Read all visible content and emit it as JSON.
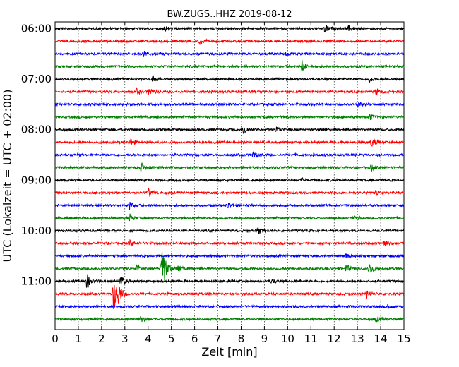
{
  "chart_data": {
    "type": "line",
    "title": "BW.ZUGS..HHZ 2019-08-12",
    "xlabel": "Zeit  [min]",
    "ylabel": "UTC (Lokalzeit = UTC + 02:00)",
    "xlim": [
      0,
      15
    ],
    "x_ticks": [
      "0",
      "1",
      "2",
      "3",
      "4",
      "5",
      "6",
      "7",
      "8",
      "9",
      "10",
      "11",
      "12",
      "13",
      "14",
      "15"
    ],
    "y_ticks": [
      {
        "label": "06:00",
        "trace": 0
      },
      {
        "label": "07:00",
        "trace": 4
      },
      {
        "label": "08:00",
        "trace": 8
      },
      {
        "label": "09:00",
        "trace": 12
      },
      {
        "label": "10:00",
        "trace": 16
      },
      {
        "label": "11:00",
        "trace": 20
      }
    ],
    "grid": "vertical dotted",
    "trace_minutes": 15,
    "colors": [
      "#000000",
      "#ff0000",
      "#0000ff",
      "#008000"
    ],
    "traces": [
      {
        "start": "06:00",
        "color": "#000000",
        "events": [
          {
            "t": 4.7,
            "a": 3
          },
          {
            "t": 11.6,
            "a": 7
          },
          {
            "t": 12.6,
            "a": 4
          }
        ]
      },
      {
        "start": "06:15",
        "color": "#ff0000",
        "events": [
          {
            "t": 6.2,
            "a": 5
          }
        ]
      },
      {
        "start": "06:30",
        "color": "#0000ff",
        "events": [
          {
            "t": 3.8,
            "a": 5
          },
          {
            "t": 9.9,
            "a": 3
          }
        ]
      },
      {
        "start": "06:45",
        "color": "#008000",
        "events": [
          {
            "t": 10.6,
            "a": 8
          },
          {
            "t": 15.0,
            "a": 4
          }
        ]
      },
      {
        "start": "07:00",
        "color": "#000000",
        "events": [
          {
            "t": 4.2,
            "a": 5
          },
          {
            "t": 13.5,
            "a": 4
          }
        ]
      },
      {
        "start": "07:15",
        "color": "#ff0000",
        "events": [
          {
            "t": 4.05,
            "a": 6
          },
          {
            "t": 3.5,
            "a": 4
          },
          {
            "t": 13.8,
            "a": 5
          }
        ]
      },
      {
        "start": "07:30",
        "color": "#0000ff",
        "events": [
          {
            "t": 13.0,
            "a": 5
          }
        ]
      },
      {
        "start": "07:45",
        "color": "#008000",
        "events": [
          {
            "t": 13.5,
            "a": 5
          }
        ]
      },
      {
        "start": "08:00",
        "color": "#000000",
        "events": [
          {
            "t": 8.1,
            "a": 8
          },
          {
            "t": 9.5,
            "a": 4
          }
        ]
      },
      {
        "start": "08:15",
        "color": "#ff0000",
        "events": [
          {
            "t": 3.2,
            "a": 6
          },
          {
            "t": 13.6,
            "a": 8
          }
        ]
      },
      {
        "start": "08:30",
        "color": "#0000ff",
        "events": [
          {
            "t": 8.5,
            "a": 5
          }
        ]
      },
      {
        "start": "08:45",
        "color": "#008000",
        "events": [
          {
            "t": 3.7,
            "a": 7
          },
          {
            "t": 13.6,
            "a": 5
          }
        ]
      },
      {
        "start": "09:00",
        "color": "#000000",
        "events": [
          {
            "t": 10.6,
            "a": 3
          }
        ]
      },
      {
        "start": "09:15",
        "color": "#ff0000",
        "events": [
          {
            "t": 4.0,
            "a": 6
          },
          {
            "t": 13.8,
            "a": 5
          }
        ]
      },
      {
        "start": "09:30",
        "color": "#0000ff",
        "events": [
          {
            "t": 3.2,
            "a": 6
          },
          {
            "t": 7.4,
            "a": 5
          }
        ]
      },
      {
        "start": "09:45",
        "color": "#008000",
        "events": [
          {
            "t": 3.2,
            "a": 6
          },
          {
            "t": 12.8,
            "a": 5
          }
        ]
      },
      {
        "start": "10:00",
        "color": "#000000",
        "events": [
          {
            "t": 8.7,
            "a": 6
          }
        ]
      },
      {
        "start": "10:15",
        "color": "#ff0000",
        "events": [
          {
            "t": 3.2,
            "a": 5
          },
          {
            "t": 14.1,
            "a": 7
          }
        ]
      },
      {
        "start": "10:30",
        "color": "#0000ff",
        "events": [
          {
            "t": 12.5,
            "a": 3
          }
        ]
      },
      {
        "start": "10:45",
        "color": "#008000",
        "events": [
          {
            "t": 4.58,
            "a": 42
          },
          {
            "t": 3.5,
            "a": 6
          },
          {
            "t": 5.3,
            "a": 6
          },
          {
            "t": 12.5,
            "a": 7
          },
          {
            "t": 13.5,
            "a": 8
          }
        ]
      },
      {
        "start": "11:00",
        "color": "#000000",
        "events": [
          {
            "t": 1.35,
            "a": 12
          },
          {
            "t": 2.8,
            "a": 9
          },
          {
            "t": 9.3,
            "a": 3
          }
        ]
      },
      {
        "start": "11:15",
        "color": "#ff0000",
        "events": [
          {
            "t": 2.5,
            "a": 28
          },
          {
            "t": 2.7,
            "a": 12
          },
          {
            "t": 13.4,
            "a": 6
          }
        ]
      },
      {
        "start": "11:30",
        "color": "#0000ff",
        "events": [
          {
            "t": 14.3,
            "a": 4
          }
        ]
      },
      {
        "start": "11:45",
        "color": "#008000",
        "events": [
          {
            "t": 3.7,
            "a": 5
          },
          {
            "t": 13.8,
            "a": 4
          }
        ]
      }
    ]
  }
}
